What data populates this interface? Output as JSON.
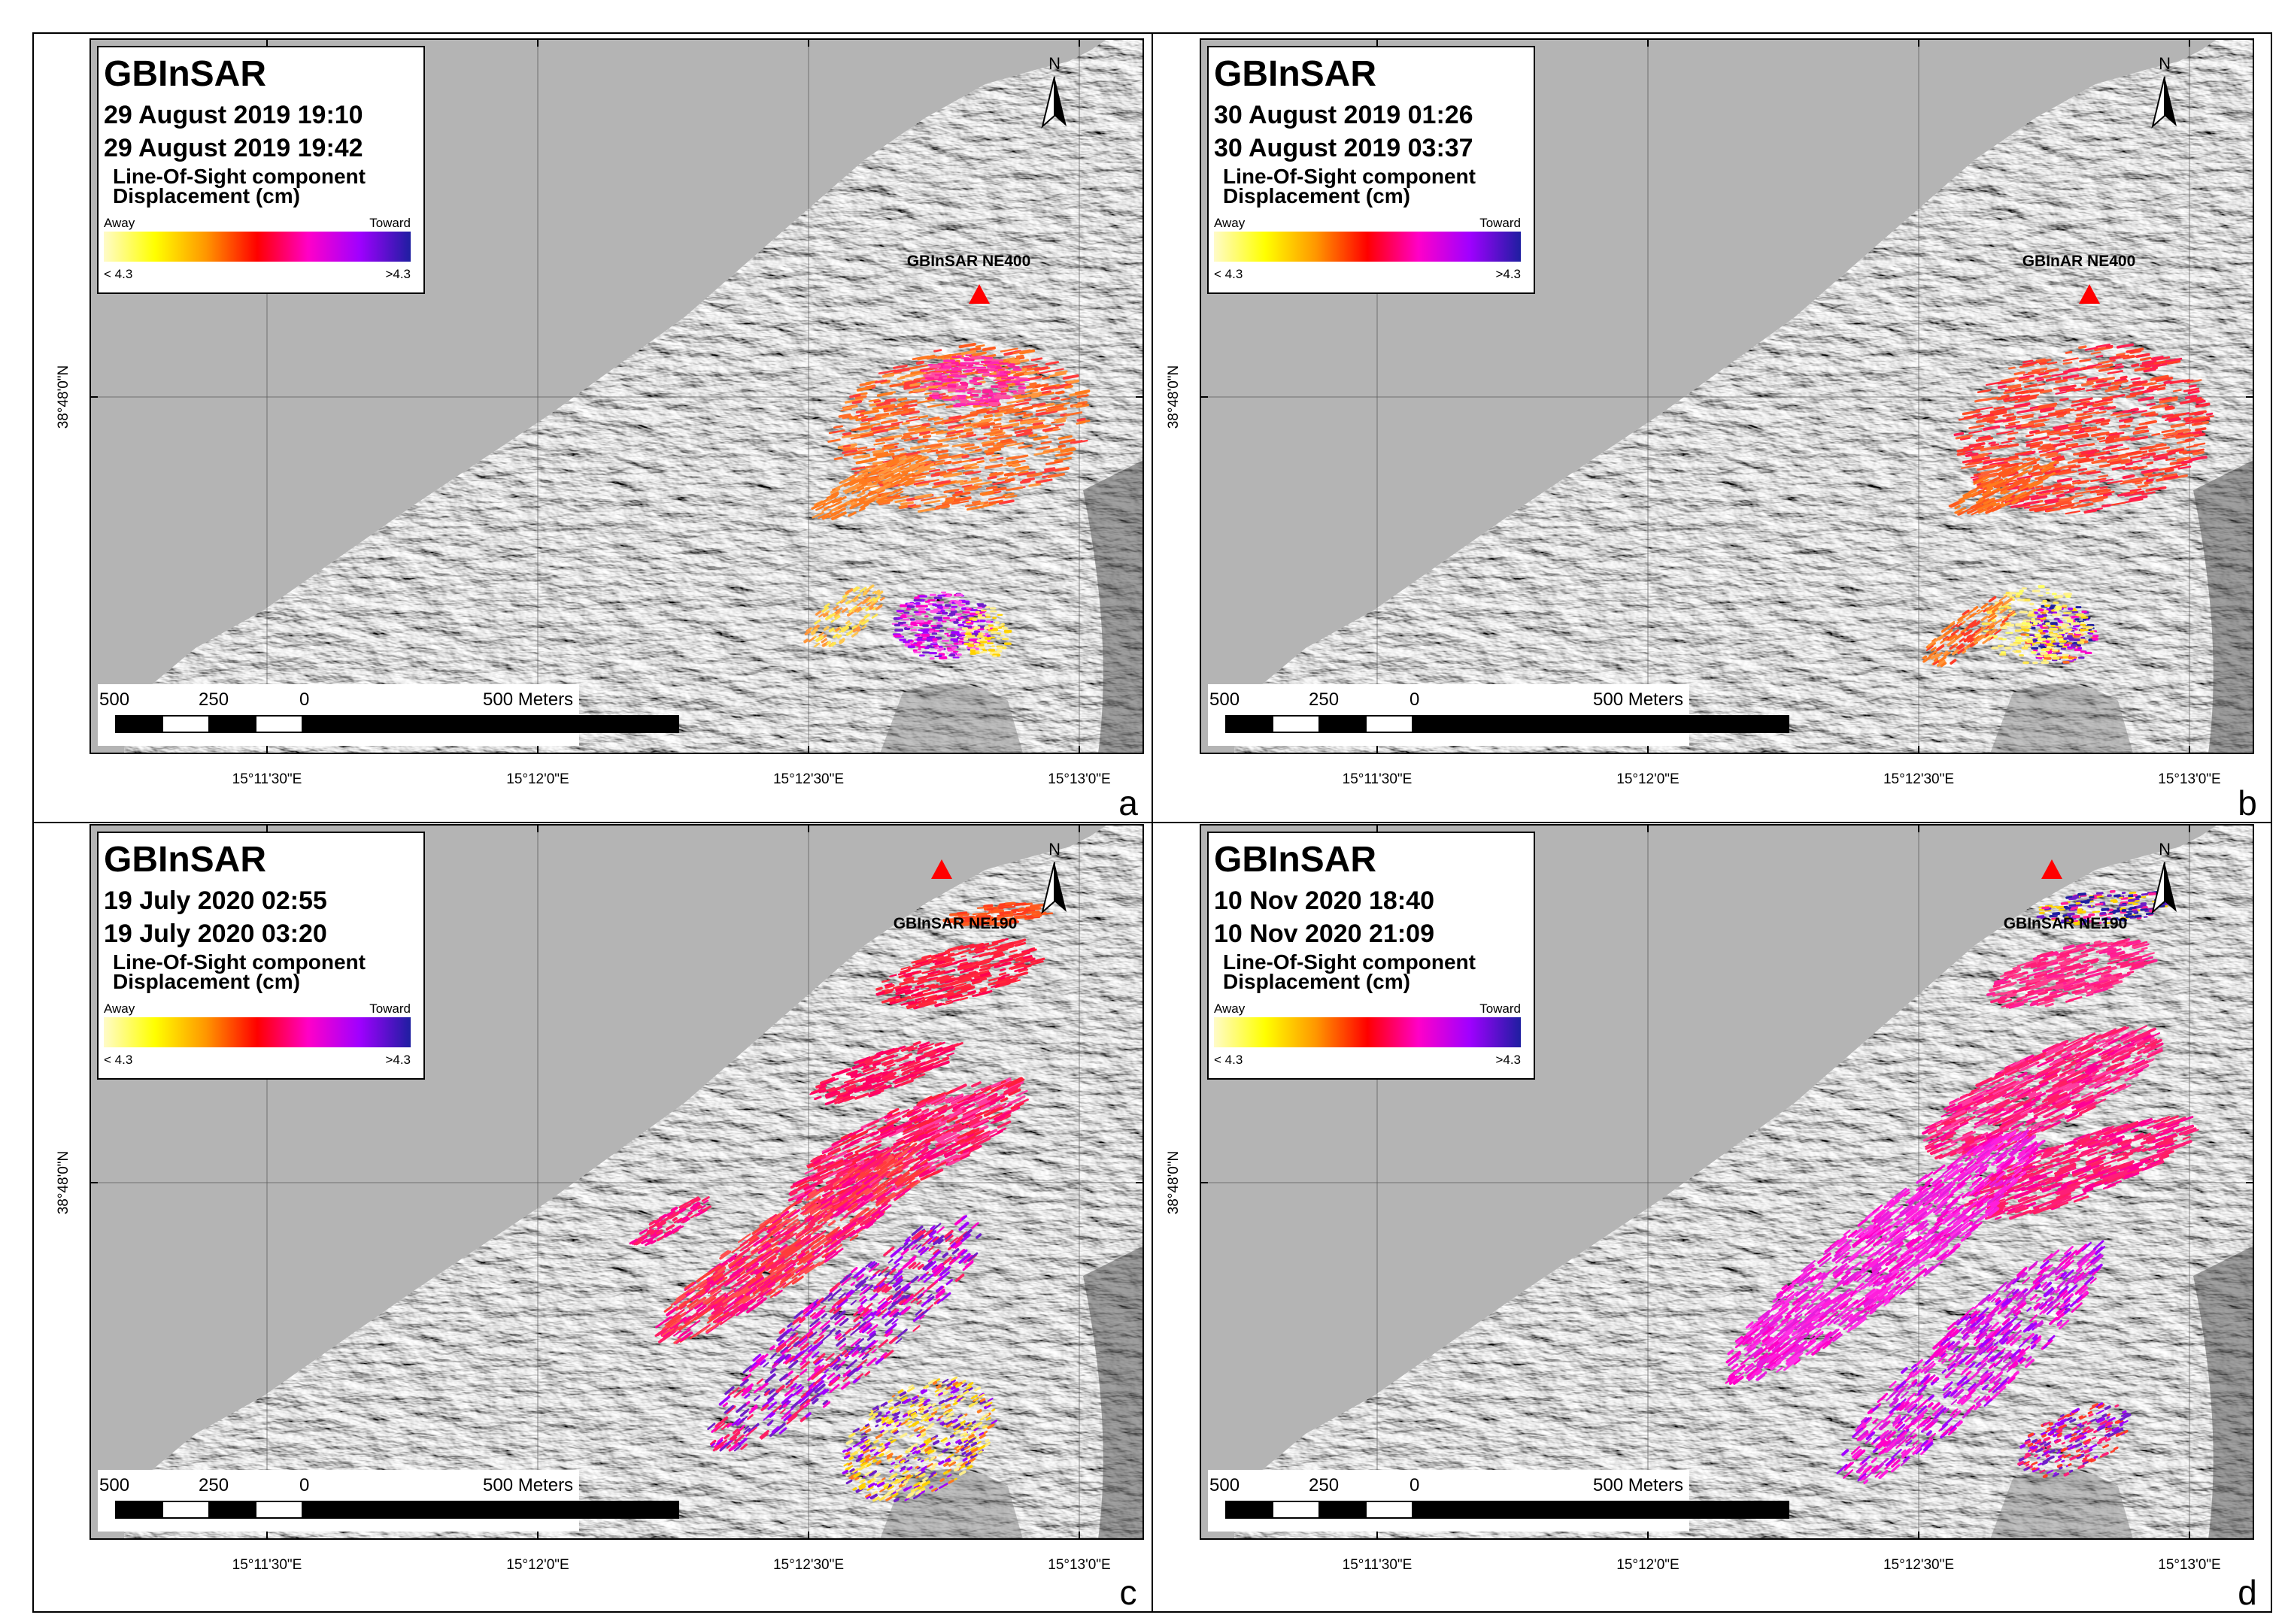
{
  "panels": [
    {
      "letter": "a",
      "title": "GBInSAR",
      "date1": "29 August 2019 19:10",
      "date2": "29 August 2019 19:42",
      "component1": "Line-Of-Sight component",
      "component2": "Displacement (cm)",
      "away": "Away",
      "toward": "Toward",
      "min_label": "< 4.3",
      "max_label": ">4.3",
      "station_label": "GBInSAR NE400",
      "station_pos": "ne400",
      "pattern": "a"
    },
    {
      "letter": "b",
      "title": "GBInSAR",
      "date1": "30 August 2019 01:26",
      "date2": "30 August 2019 03:37",
      "component1": "Line-Of-Sight component",
      "component2": "Displacement (cm)",
      "away": "Away",
      "toward": "Toward",
      "min_label": "< 4.3",
      "max_label": ">4.3",
      "station_label": "GBInAR NE400",
      "station_pos": "ne400",
      "pattern": "b"
    },
    {
      "letter": "c",
      "title": "GBInSAR",
      "date1": "19 July 2020 02:55",
      "date2": "19 July 2020 03:20",
      "component1": "Line-Of-Sight component",
      "component2": "Displacement (cm)",
      "away": "Away",
      "toward": "Toward",
      "min_label": "< 4.3",
      "max_label": ">4.3",
      "station_label": "GBInSAR NE190",
      "station_pos": "ne190",
      "pattern": "c"
    },
    {
      "letter": "d",
      "title": "GBInSAR",
      "date1": "10 Nov 2020 18:40",
      "date2": "10 Nov 2020 21:09",
      "component1": "Line-Of-Sight component",
      "component2": "Displacement (cm)",
      "away": "Away",
      "toward": "Toward",
      "min_label": "< 4.3",
      "max_label": ">4.3",
      "station_label": "GBInSAR NE190",
      "station_pos": "ne190",
      "pattern": "d"
    }
  ],
  "x_ticks": [
    "15°11'30\"E",
    "15°12'0\"E",
    "15°12'30\"E",
    "15°13'0\"E"
  ],
  "y_tick": "38°48'0\"N",
  "north_label": "N",
  "scale_labels": [
    "500",
    "250",
    "0",
    "500 Meters"
  ],
  "colors": {
    "sea": "#b4b4b4",
    "ramp": [
      "#fffbc8",
      "#ffff00",
      "#ff9600",
      "#ff0000",
      "#ff00c8",
      "#a000ff",
      "#1e1ea0"
    ],
    "station": "#ff0000"
  }
}
